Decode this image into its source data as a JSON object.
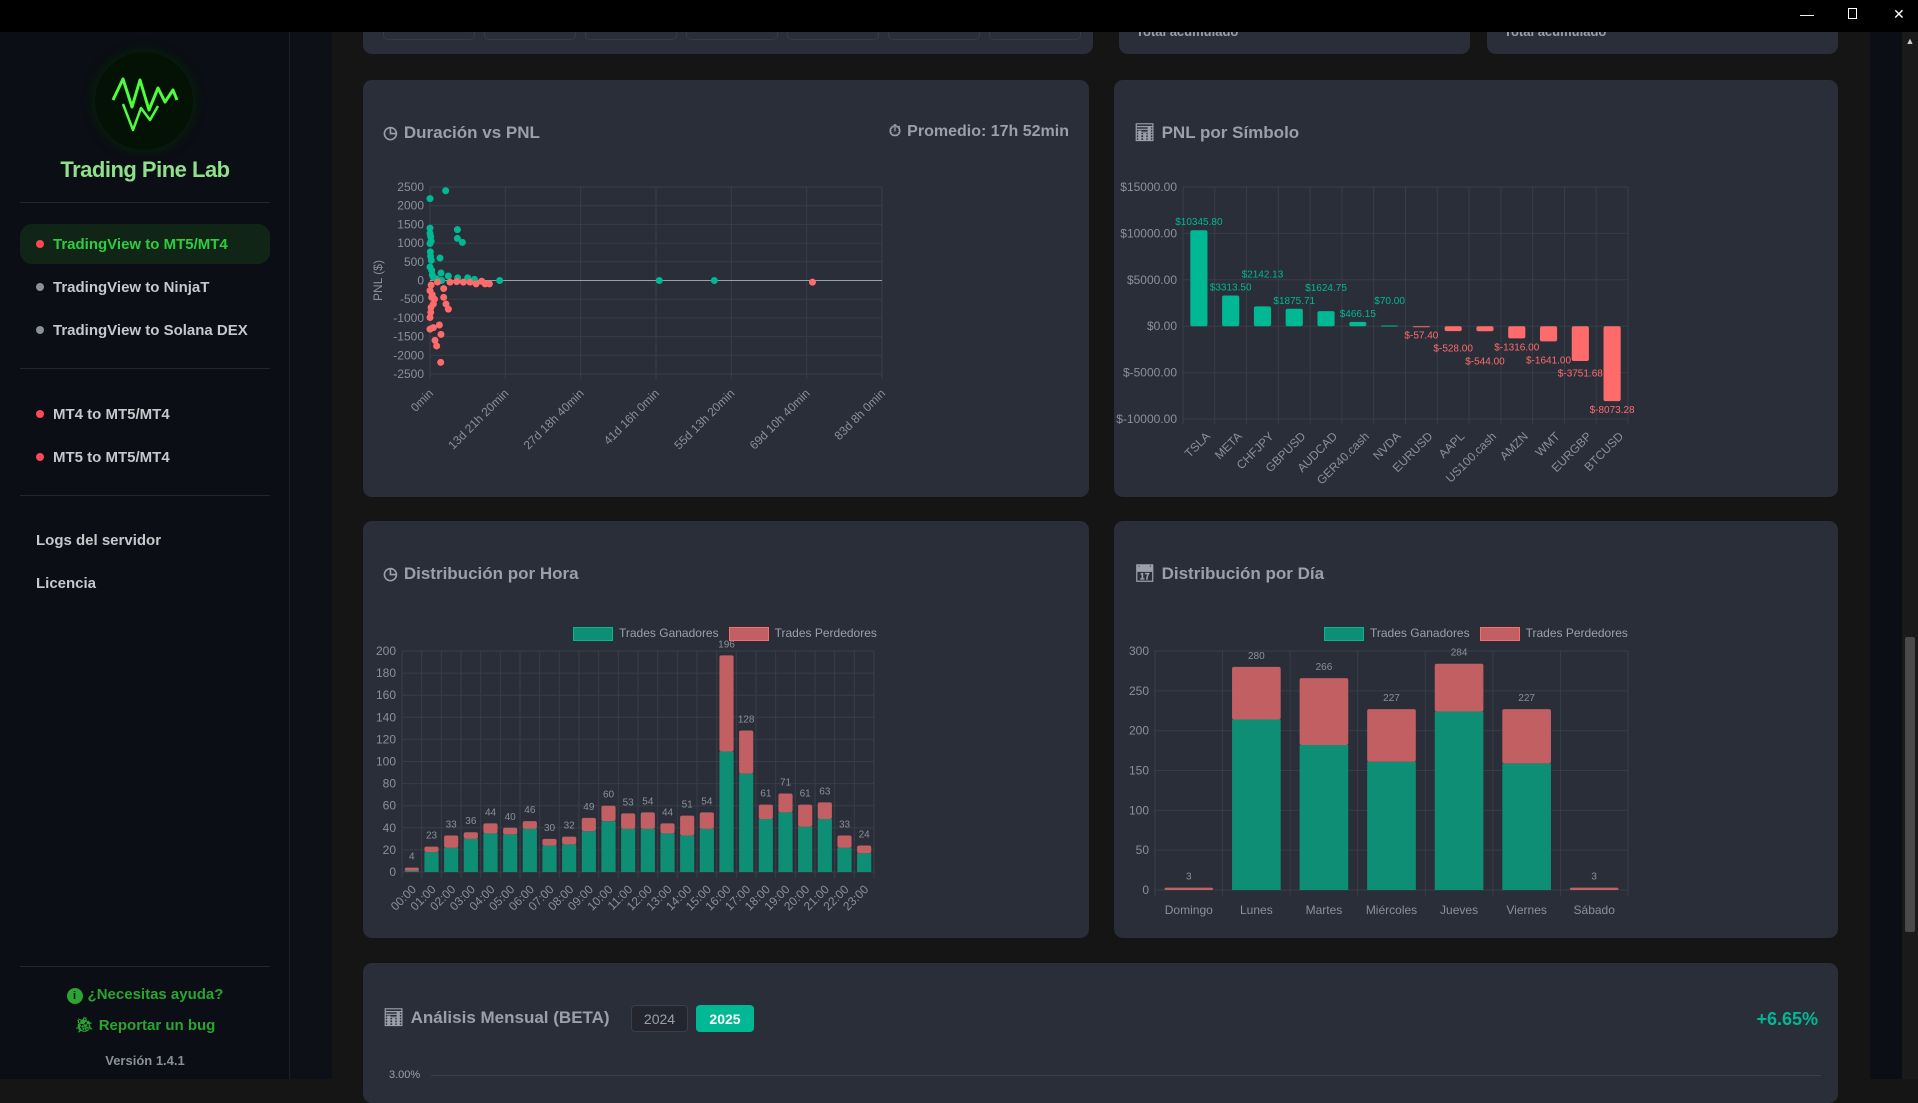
{
  "window": {
    "controls": [
      "minimize",
      "maximize",
      "close"
    ]
  },
  "sidebar": {
    "brand": "Trading Pine Lab",
    "groups": [
      [
        {
          "label": "TradingView to MT5/MT4",
          "status": "#ff4757",
          "active": true
        },
        {
          "label": "TradingView to NinjaT",
          "status": "#8a8f99"
        },
        {
          "label": "TradingView to Solana DEX",
          "status": "#8a8f99"
        }
      ],
      [
        {
          "label": "MT4 to MT5/MT4",
          "status": "#ff4757"
        },
        {
          "label": "MT5 to MT5/MT4",
          "status": "#ff4757"
        }
      ]
    ],
    "links": [
      "Logs del servidor",
      "Licencia"
    ],
    "help": "¿Necesitas ayuda?",
    "bug": "Reportar un bug",
    "version": "Versión 1.4.1"
  },
  "top_cards": {
    "card2_label": "Total acumulado",
    "card3_label": "Total acumulado"
  },
  "colors": {
    "win": "#00b894",
    "loss": "#ff6b6b",
    "win_bar": "#0e8f75",
    "loss_bar": "#c25f62"
  },
  "duration_card": {
    "title": "Duración vs PNL",
    "icon": "clock-icon",
    "avg": "Promedio: 17h 52min",
    "avg_icon": "stopwatch-icon"
  },
  "symbol_card": {
    "title": "PNL por Símbolo",
    "icon": "bar-chart-icon"
  },
  "hour_card": {
    "title": "Distribución por Hora",
    "icon": "clock-icon"
  },
  "day_card": {
    "title": "Distribución por Día",
    "icon": "calendar-icon"
  },
  "legend": {
    "win": "Trades Ganadores",
    "loss": "Trades Perdedores"
  },
  "monthly": {
    "title": "Análisis Mensual (BETA)",
    "icon": "bar-chart-icon",
    "years": [
      "2024",
      "2025"
    ],
    "selected": "2025",
    "total": "+6.65%",
    "first_tick": "3.00%"
  },
  "chart_data": [
    {
      "type": "scatter",
      "ylabel": "PNL ($)",
      "xlim_min": [
        0,
        120000
      ],
      "ylim": [
        -2500,
        2500
      ],
      "yticks": [
        "2500",
        "2000",
        "1500",
        "1000",
        "500",
        "0",
        "-500",
        "-1000",
        "-1500",
        "-2000",
        "-2500"
      ],
      "xticks": [
        "0min",
        "13d 21h 20min",
        "27d 18h 40min",
        "41d 16h 0min",
        "55d 13h 20min",
        "69d 10h 40min",
        "83d 8h 0min"
      ],
      "points_min_pnl": [
        [
          0,
          2190
        ],
        [
          4160,
          2400
        ],
        [
          7270,
          1360
        ],
        [
          7270,
          1125
        ],
        [
          8600,
          1020
        ],
        [
          2660,
          600
        ],
        [
          2920,
          200
        ],
        [
          4870,
          120
        ],
        [
          7350,
          70
        ],
        [
          10000,
          70
        ],
        [
          11800,
          30
        ],
        [
          18500,
          0
        ],
        [
          60870,
          0
        ],
        [
          75490,
          0
        ],
        [
          0,
          1400
        ],
        [
          0,
          1260
        ],
        [
          180,
          1170
        ],
        [
          0,
          990
        ],
        [
          90,
          765
        ],
        [
          360,
          540
        ],
        [
          0,
          360
        ],
        [
          450,
          270
        ],
        [
          890,
          90
        ],
        [
          1770,
          45
        ],
        [
          3100,
          0
        ],
        [
          300,
          1050
        ],
        [
          150,
          650
        ],
        [
          600,
          150
        ],
        [
          0,
          -1300
        ],
        [
          890,
          -1260
        ],
        [
          2480,
          -1190
        ],
        [
          2920,
          -1440
        ],
        [
          1330,
          -1600
        ],
        [
          1770,
          -1750
        ],
        [
          2840,
          -2190
        ],
        [
          0,
          -990
        ],
        [
          270,
          -720
        ],
        [
          450,
          -450
        ],
        [
          890,
          -630
        ],
        [
          0,
          -270
        ],
        [
          3630,
          -216
        ],
        [
          3630,
          -450
        ],
        [
          4250,
          -630
        ],
        [
          4870,
          -765
        ],
        [
          7090,
          -30
        ],
        [
          10630,
          -45
        ],
        [
          12230,
          -90
        ],
        [
          13730,
          -20
        ],
        [
          14620,
          -90
        ],
        [
          15770,
          -90
        ],
        [
          101540,
          -45
        ],
        [
          5300,
          -45
        ],
        [
          8860,
          -45
        ],
        [
          200,
          -850
        ],
        [
          600,
          -380
        ],
        [
          1200,
          -500
        ],
        [
          300,
          -120
        ],
        [
          2000,
          -40
        ]
      ]
    },
    {
      "type": "bar",
      "ylim": [
        -10000,
        15000
      ],
      "yticks": [
        "$15000.00",
        "$10000.00",
        "$5000.00",
        "$0.00",
        "$-5000.00",
        "$-10000.00"
      ],
      "categories": [
        "TSLA",
        "META",
        "CHFJPY",
        "GBPUSD",
        "AUDCAD",
        "GER40.cash",
        "NVDA",
        "EURUSD",
        "AAPL",
        "US100.cash",
        "AMZN",
        "WMT",
        "EURGBP",
        "BTCUSD"
      ],
      "values": [
        10345.8,
        3313.5,
        2142.13,
        1875.71,
        1624.75,
        466.15,
        70.0,
        -57.4,
        -528.0,
        -544.0,
        -1316.0,
        -1641.0,
        -3751.68,
        -8073.28
      ],
      "labels": [
        "$10345.80",
        "$3313.50",
        "$2142.13",
        "$1875.71",
        "$1624.75",
        "$466.15",
        "$70.00",
        "$-57.40",
        "$-528.00",
        "$-544.00",
        "$-1316.00",
        "$-1641.00",
        "$-3751.68",
        "$-8073.28"
      ]
    },
    {
      "type": "bar",
      "stacked": true,
      "legend": "top",
      "ylim": [
        0,
        200
      ],
      "yticks": [
        "200",
        "180",
        "160",
        "140",
        "120",
        "100",
        "80",
        "60",
        "40",
        "20",
        "0"
      ],
      "categories": [
        "00:00",
        "01:00",
        "02:00",
        "03:00",
        "04:00",
        "05:00",
        "06:00",
        "07:00",
        "08:00",
        "09:00",
        "10:00",
        "11:00",
        "12:00",
        "13:00",
        "14:00",
        "15:00",
        "16:00",
        "17:00",
        "18:00",
        "19:00",
        "20:00",
        "21:00",
        "22:00",
        "23:00"
      ],
      "series": [
        {
          "name": "Trades Ganadores",
          "values": [
            1,
            18,
            22,
            30,
            35,
            34,
            39,
            24,
            25,
            37,
            46,
            39,
            39,
            35,
            33,
            39,
            109,
            89,
            48,
            54,
            41,
            48,
            22,
            17
          ]
        },
        {
          "name": "Trades Perdedores",
          "values": [
            3,
            5,
            11,
            6,
            9,
            6,
            7,
            6,
            7,
            12,
            14,
            14,
            15,
            9,
            18,
            15,
            87,
            39,
            13,
            17,
            20,
            15,
            11,
            7
          ]
        }
      ],
      "totals": [
        "4",
        "23",
        "33",
        "36",
        "44",
        "40",
        "46",
        "30",
        "32",
        "49",
        "60",
        "53",
        "54",
        "44",
        "51",
        "54",
        "196",
        "128",
        "61",
        "71",
        "61",
        "63",
        "33",
        "24"
      ]
    },
    {
      "type": "bar",
      "stacked": true,
      "legend": "top",
      "ylim": [
        0,
        300
      ],
      "yticks": [
        "300",
        "250",
        "200",
        "150",
        "100",
        "50",
        "0"
      ],
      "categories": [
        "Domingo",
        "Lunes",
        "Martes",
        "Miércoles",
        "Jueves",
        "Viernes",
        "Sábado"
      ],
      "series": [
        {
          "name": "Trades Ganadores",
          "values": [
            0,
            214,
            182,
            161,
            224,
            159,
            0
          ]
        },
        {
          "name": "Trades Perdedores",
          "values": [
            3,
            66,
            84,
            66,
            60,
            68,
            3
          ]
        }
      ],
      "totals": [
        "3",
        "280",
        "266",
        "227",
        "284",
        "227",
        "3"
      ]
    }
  ]
}
